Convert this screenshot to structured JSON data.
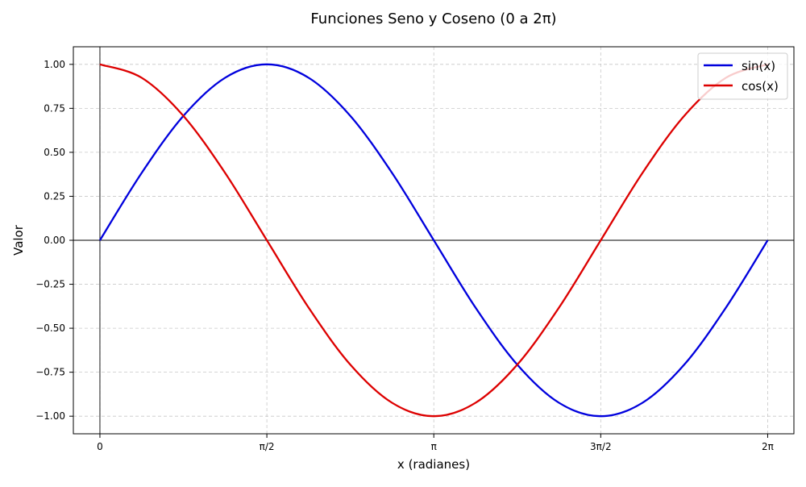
{
  "chart_data": {
    "type": "line",
    "title": "Funciones Seno y Coseno (0 a 2π)",
    "xlabel": "x (radianes)",
    "ylabel": "Valor",
    "xlim": [
      -0.25,
      6.53
    ],
    "ylim": [
      -1.1,
      1.1
    ],
    "grid": true,
    "grid_style": "dashed",
    "legend_position": "upper right",
    "x_ticks": [
      {
        "value": 0,
        "label": "0"
      },
      {
        "value": 1.5707963,
        "label": "π/2"
      },
      {
        "value": 3.1415927,
        "label": "π"
      },
      {
        "value": 4.712389,
        "label": "3π/2"
      },
      {
        "value": 6.2831853,
        "label": "2π"
      }
    ],
    "y_ticks": [
      {
        "value": 1.0,
        "label": "1.00"
      },
      {
        "value": 0.75,
        "label": "0.75"
      },
      {
        "value": 0.5,
        "label": "0.50"
      },
      {
        "value": 0.25,
        "label": "0.25"
      },
      {
        "value": 0.0,
        "label": "0.00"
      },
      {
        "value": -0.25,
        "label": "−0.25"
      },
      {
        "value": -0.5,
        "label": "−0.50"
      },
      {
        "value": -0.75,
        "label": "−0.75"
      },
      {
        "value": -1.0,
        "label": "−1.00"
      }
    ],
    "reference_lines": {
      "x": 0,
      "y": 0,
      "color": "#000000"
    },
    "x": [
      0,
      0.3926991,
      0.7853982,
      1.1780972,
      1.5707963,
      1.9634954,
      2.3561945,
      2.7488936,
      3.1415927,
      3.5342917,
      3.9269908,
      4.3196899,
      4.712389,
      5.1050881,
      5.4977871,
      5.8904862,
      6.2831853
    ],
    "series": [
      {
        "name": "sin(x)",
        "color": "#0000dd",
        "values": [
          0,
          0.3827,
          0.7071,
          0.9239,
          1,
          0.9239,
          0.7071,
          0.3827,
          0,
          -0.3827,
          -0.7071,
          -0.9239,
          -1,
          -0.9239,
          -0.7071,
          -0.3827,
          0
        ]
      },
      {
        "name": "cos(x)",
        "color": "#dd0000",
        "values": [
          1,
          0.9239,
          0.7071,
          0.3827,
          0,
          -0.3827,
          -0.7071,
          -0.9239,
          -1,
          -0.9239,
          -0.7071,
          -0.3827,
          0,
          0.3827,
          0.7071,
          0.9239,
          1
        ]
      }
    ]
  }
}
